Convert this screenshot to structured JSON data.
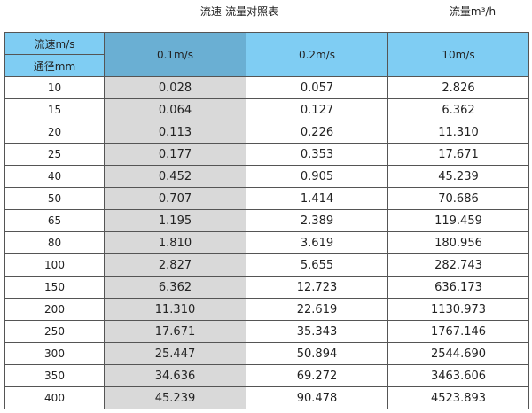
{
  "title": "流速-流量对照表",
  "unit_label": "流量m³/h",
  "colors": {
    "header": "#7fcdf3",
    "highlight_header": "#6aafd3",
    "highlight_column": "#d9d9d9"
  },
  "table": {
    "corner_top": "流速m/s",
    "corner_bottom": "通径mm",
    "columns": [
      "0.1m/s",
      "0.2m/s",
      "10m/s"
    ],
    "rows": [
      [
        "10",
        "0.028",
        "0.057",
        "2.826"
      ],
      [
        "15",
        "0.064",
        "0.127",
        "6.362"
      ],
      [
        "20",
        "0.113",
        "0.226",
        "11.310"
      ],
      [
        "25",
        "0.177",
        "0.353",
        "17.671"
      ],
      [
        "40",
        "0.452",
        "0.905",
        "45.239"
      ],
      [
        "50",
        "0.707",
        "1.414",
        "70.686"
      ],
      [
        "65",
        "1.195",
        "2.389",
        "119.459"
      ],
      [
        "80",
        "1.810",
        "3.619",
        "180.956"
      ],
      [
        "100",
        "2.827",
        "5.655",
        "282.743"
      ],
      [
        "150",
        "6.362",
        "12.723",
        "636.173"
      ],
      [
        "200",
        "11.310",
        "22.619",
        "1130.973"
      ],
      [
        "250",
        "17.671",
        "35.343",
        "1767.146"
      ],
      [
        "300",
        "25.447",
        "50.894",
        "2544.690"
      ],
      [
        "350",
        "34.636",
        "69.272",
        "3463.606"
      ],
      [
        "400",
        "45.239",
        "90.478",
        "4523.893"
      ]
    ]
  }
}
